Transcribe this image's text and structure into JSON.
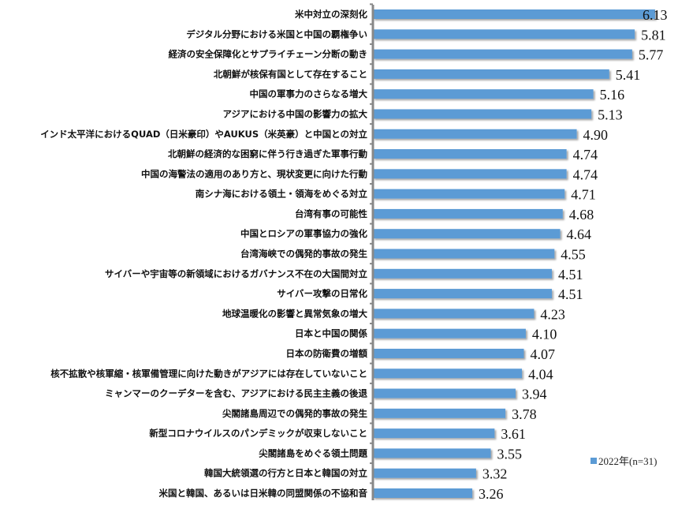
{
  "chart_data": {
    "type": "bar",
    "orientation": "horizontal",
    "title": "",
    "xlabel": "",
    "ylabel": "",
    "xlim": [
      1.7,
      6.4
    ],
    "grid": false,
    "legend_position": "bottom-right",
    "bar_color": "#5b9bd5",
    "categories": [
      "米中対立の深刻化",
      "デジタル分野における米国と中国の覇権争い",
      "経済の安全保障化とサプライチェーン分断の動き",
      "北朝鮮が核保有国として存在すること",
      "中国の軍事力のさらなる増大",
      "アジアにおける中国の影響力の拡大",
      "インド太平洋におけるQUAD（日米豪印）やAUKUS（米英豪）と中国との対立",
      "北朝鮮の経済的な困窮に伴う行き過ぎた軍事行動",
      "中国の海警法の適用のあり方と、現状変更に向けた行動",
      "南シナ海における領土・領海をめぐる対立",
      "台湾有事の可能性",
      "中国とロシアの軍事協力の強化",
      "台湾海峡での偶発的事故の発生",
      "サイバーや宇宙等の新領域におけるガバナンス不在の大国間対立",
      "サイバー攻撃の日常化",
      "地球温暖化の影響と異常気象の増大",
      "日本と中国の関係",
      "日本の防衛費の増額",
      "核不拡散や核軍縮・核軍備管理に向けた動きがアジアには存在していないこと",
      "ミャンマーのクーデターを含む、アジアにおける民主主義の後退",
      "尖閣諸島周辺での偶発的事故の発生",
      "新型コロナウイルスのパンデミックが収束しないこと",
      "尖閣諸島をめぐる領土問題",
      "韓国大統領選の行方と日本と韓国の対立",
      "米国と韓国、あるいは日米韓の同盟関係の不協和音"
    ],
    "series": [
      {
        "name": "2022年(n=31)",
        "values": [
          6.13,
          5.81,
          5.77,
          5.41,
          5.16,
          5.13,
          4.9,
          4.74,
          4.74,
          4.71,
          4.68,
          4.64,
          4.55,
          4.51,
          4.51,
          4.23,
          4.1,
          4.07,
          4.04,
          3.94,
          3.78,
          3.61,
          3.55,
          3.32,
          3.26
        ],
        "labels": [
          "6.13",
          "5.81",
          "5.77",
          "5.41",
          "5.16",
          "5.13",
          "4.90",
          "4.74",
          "4.74",
          "4.71",
          "4.68",
          "4.64",
          "4.55",
          "4.51",
          "4.51",
          "4.23",
          "4.10",
          "4.07",
          "4.04",
          "3.94",
          "3.78",
          "3.61",
          "3.55",
          "3.32",
          "3.26"
        ]
      }
    ]
  }
}
